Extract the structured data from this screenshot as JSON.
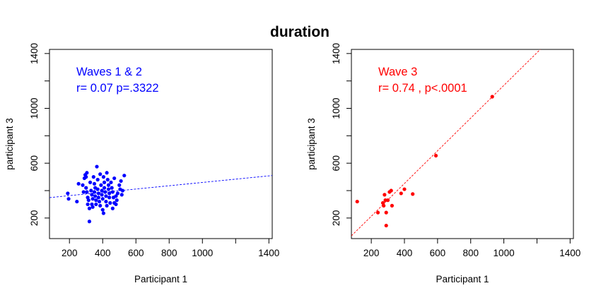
{
  "figure_title": "duration",
  "chart_data": [
    {
      "type": "scatter",
      "title": "",
      "xlabel": "Participant 1",
      "ylabel": "participant 3",
      "xlim": [
        80,
        1420
      ],
      "ylim": [
        50,
        1430
      ],
      "xticks": [
        200,
        400,
        600,
        800,
        1000,
        1400
      ],
      "xticks_minor": [
        1200
      ],
      "yticks": [
        200,
        600,
        1000,
        1400
      ],
      "yticks_minor": [
        400,
        800,
        1200
      ],
      "color": "#0000ff",
      "annotation_lines": [
        "Waves 1 & 2",
        "r= 0.07     p=.3322"
      ],
      "fit_line": {
        "x": [
          80,
          1420
        ],
        "y": [
          349,
          510
        ],
        "style": "dashed"
      },
      "points": [
        {
          "x": 320,
          "y": 175
        },
        {
          "x": 190,
          "y": 380
        },
        {
          "x": 195,
          "y": 340
        },
        {
          "x": 245,
          "y": 320
        },
        {
          "x": 280,
          "y": 440
        },
        {
          "x": 290,
          "y": 490
        },
        {
          "x": 295,
          "y": 515
        },
        {
          "x": 300,
          "y": 500
        },
        {
          "x": 305,
          "y": 530
        },
        {
          "x": 300,
          "y": 420
        },
        {
          "x": 305,
          "y": 390
        },
        {
          "x": 310,
          "y": 350
        },
        {
          "x": 315,
          "y": 330
        },
        {
          "x": 310,
          "y": 300
        },
        {
          "x": 320,
          "y": 270
        },
        {
          "x": 325,
          "y": 460
        },
        {
          "x": 330,
          "y": 400
        },
        {
          "x": 335,
          "y": 370
        },
        {
          "x": 340,
          "y": 340
        },
        {
          "x": 335,
          "y": 300
        },
        {
          "x": 340,
          "y": 280
        },
        {
          "x": 345,
          "y": 500
        },
        {
          "x": 350,
          "y": 450
        },
        {
          "x": 355,
          "y": 420
        },
        {
          "x": 350,
          "y": 390
        },
        {
          "x": 355,
          "y": 360
        },
        {
          "x": 360,
          "y": 330
        },
        {
          "x": 360,
          "y": 300
        },
        {
          "x": 365,
          "y": 575
        },
        {
          "x": 370,
          "y": 480
        },
        {
          "x": 370,
          "y": 410
        },
        {
          "x": 375,
          "y": 380
        },
        {
          "x": 375,
          "y": 350
        },
        {
          "x": 380,
          "y": 320
        },
        {
          "x": 385,
          "y": 290
        },
        {
          "x": 385,
          "y": 520
        },
        {
          "x": 390,
          "y": 440
        },
        {
          "x": 395,
          "y": 400
        },
        {
          "x": 395,
          "y": 370
        },
        {
          "x": 400,
          "y": 340
        },
        {
          "x": 400,
          "y": 260
        },
        {
          "x": 405,
          "y": 235
        },
        {
          "x": 405,
          "y": 500
        },
        {
          "x": 410,
          "y": 460
        },
        {
          "x": 410,
          "y": 420
        },
        {
          "x": 415,
          "y": 390
        },
        {
          "x": 420,
          "y": 360
        },
        {
          "x": 420,
          "y": 320
        },
        {
          "x": 425,
          "y": 290
        },
        {
          "x": 425,
          "y": 530
        },
        {
          "x": 430,
          "y": 480
        },
        {
          "x": 435,
          "y": 440
        },
        {
          "x": 435,
          "y": 410
        },
        {
          "x": 440,
          "y": 380
        },
        {
          "x": 440,
          "y": 350
        },
        {
          "x": 445,
          "y": 310
        },
        {
          "x": 450,
          "y": 460
        },
        {
          "x": 455,
          "y": 420
        },
        {
          "x": 460,
          "y": 390
        },
        {
          "x": 460,
          "y": 270
        },
        {
          "x": 465,
          "y": 350
        },
        {
          "x": 470,
          "y": 310
        },
        {
          "x": 470,
          "y": 490
        },
        {
          "x": 480,
          "y": 360
        },
        {
          "x": 485,
          "y": 330
        },
        {
          "x": 490,
          "y": 380
        },
        {
          "x": 500,
          "y": 440
        },
        {
          "x": 505,
          "y": 410
        },
        {
          "x": 510,
          "y": 470
        },
        {
          "x": 515,
          "y": 370
        },
        {
          "x": 520,
          "y": 400
        },
        {
          "x": 530,
          "y": 510
        },
        {
          "x": 255,
          "y": 450
        },
        {
          "x": 285,
          "y": 390
        },
        {
          "x": 480,
          "y": 300
        }
      ]
    },
    {
      "type": "scatter",
      "title": "",
      "xlabel": "Participant 1",
      "ylabel": "participant 3",
      "xlim": [
        80,
        1420
      ],
      "ylim": [
        50,
        1430
      ],
      "xticks": [
        200,
        400,
        600,
        800,
        1000,
        1400
      ],
      "xticks_minor": [
        1200
      ],
      "yticks": [
        200,
        600,
        1000,
        1400
      ],
      "yticks_minor": [
        400,
        800,
        1200
      ],
      "color": "#ff0000",
      "annotation_lines": [
        "Wave 3",
        "r= 0.74 ,    p<.0001"
      ],
      "fit_line": {
        "x": [
          80,
          1220
        ],
        "y": [
          70,
          1430
        ],
        "style": "dashed"
      },
      "points": [
        {
          "x": 115,
          "y": 320
        },
        {
          "x": 240,
          "y": 240
        },
        {
          "x": 270,
          "y": 310
        },
        {
          "x": 275,
          "y": 290
        },
        {
          "x": 280,
          "y": 370
        },
        {
          "x": 285,
          "y": 330
        },
        {
          "x": 290,
          "y": 145
        },
        {
          "x": 290,
          "y": 240
        },
        {
          "x": 300,
          "y": 330
        },
        {
          "x": 310,
          "y": 390
        },
        {
          "x": 320,
          "y": 400
        },
        {
          "x": 325,
          "y": 290
        },
        {
          "x": 380,
          "y": 380
        },
        {
          "x": 400,
          "y": 410
        },
        {
          "x": 450,
          "y": 375
        },
        {
          "x": 590,
          "y": 655
        },
        {
          "x": 930,
          "y": 1085
        }
      ]
    }
  ]
}
